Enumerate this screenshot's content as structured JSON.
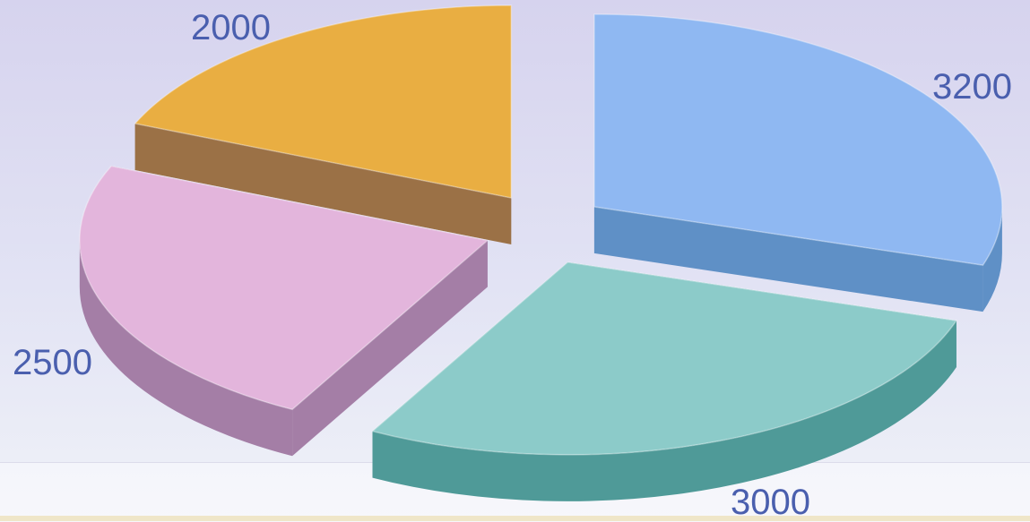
{
  "chart_data": {
    "type": "pie",
    "three_d": true,
    "exploded": true,
    "slices": [
      {
        "label": "3200",
        "value": 3200,
        "color": "#8fb8f2",
        "side_color": "#5f90c6"
      },
      {
        "label": "3000",
        "value": 3000,
        "color": "#8ccbc9",
        "side_color": "#4f9a98"
      },
      {
        "label": "2500",
        "value": 2500,
        "color": "#e3b5dc",
        "side_color": "#a47ea6"
      },
      {
        "label": "2000",
        "value": 2000,
        "color": "#e9ae42",
        "side_color": "#9b7146"
      }
    ]
  }
}
